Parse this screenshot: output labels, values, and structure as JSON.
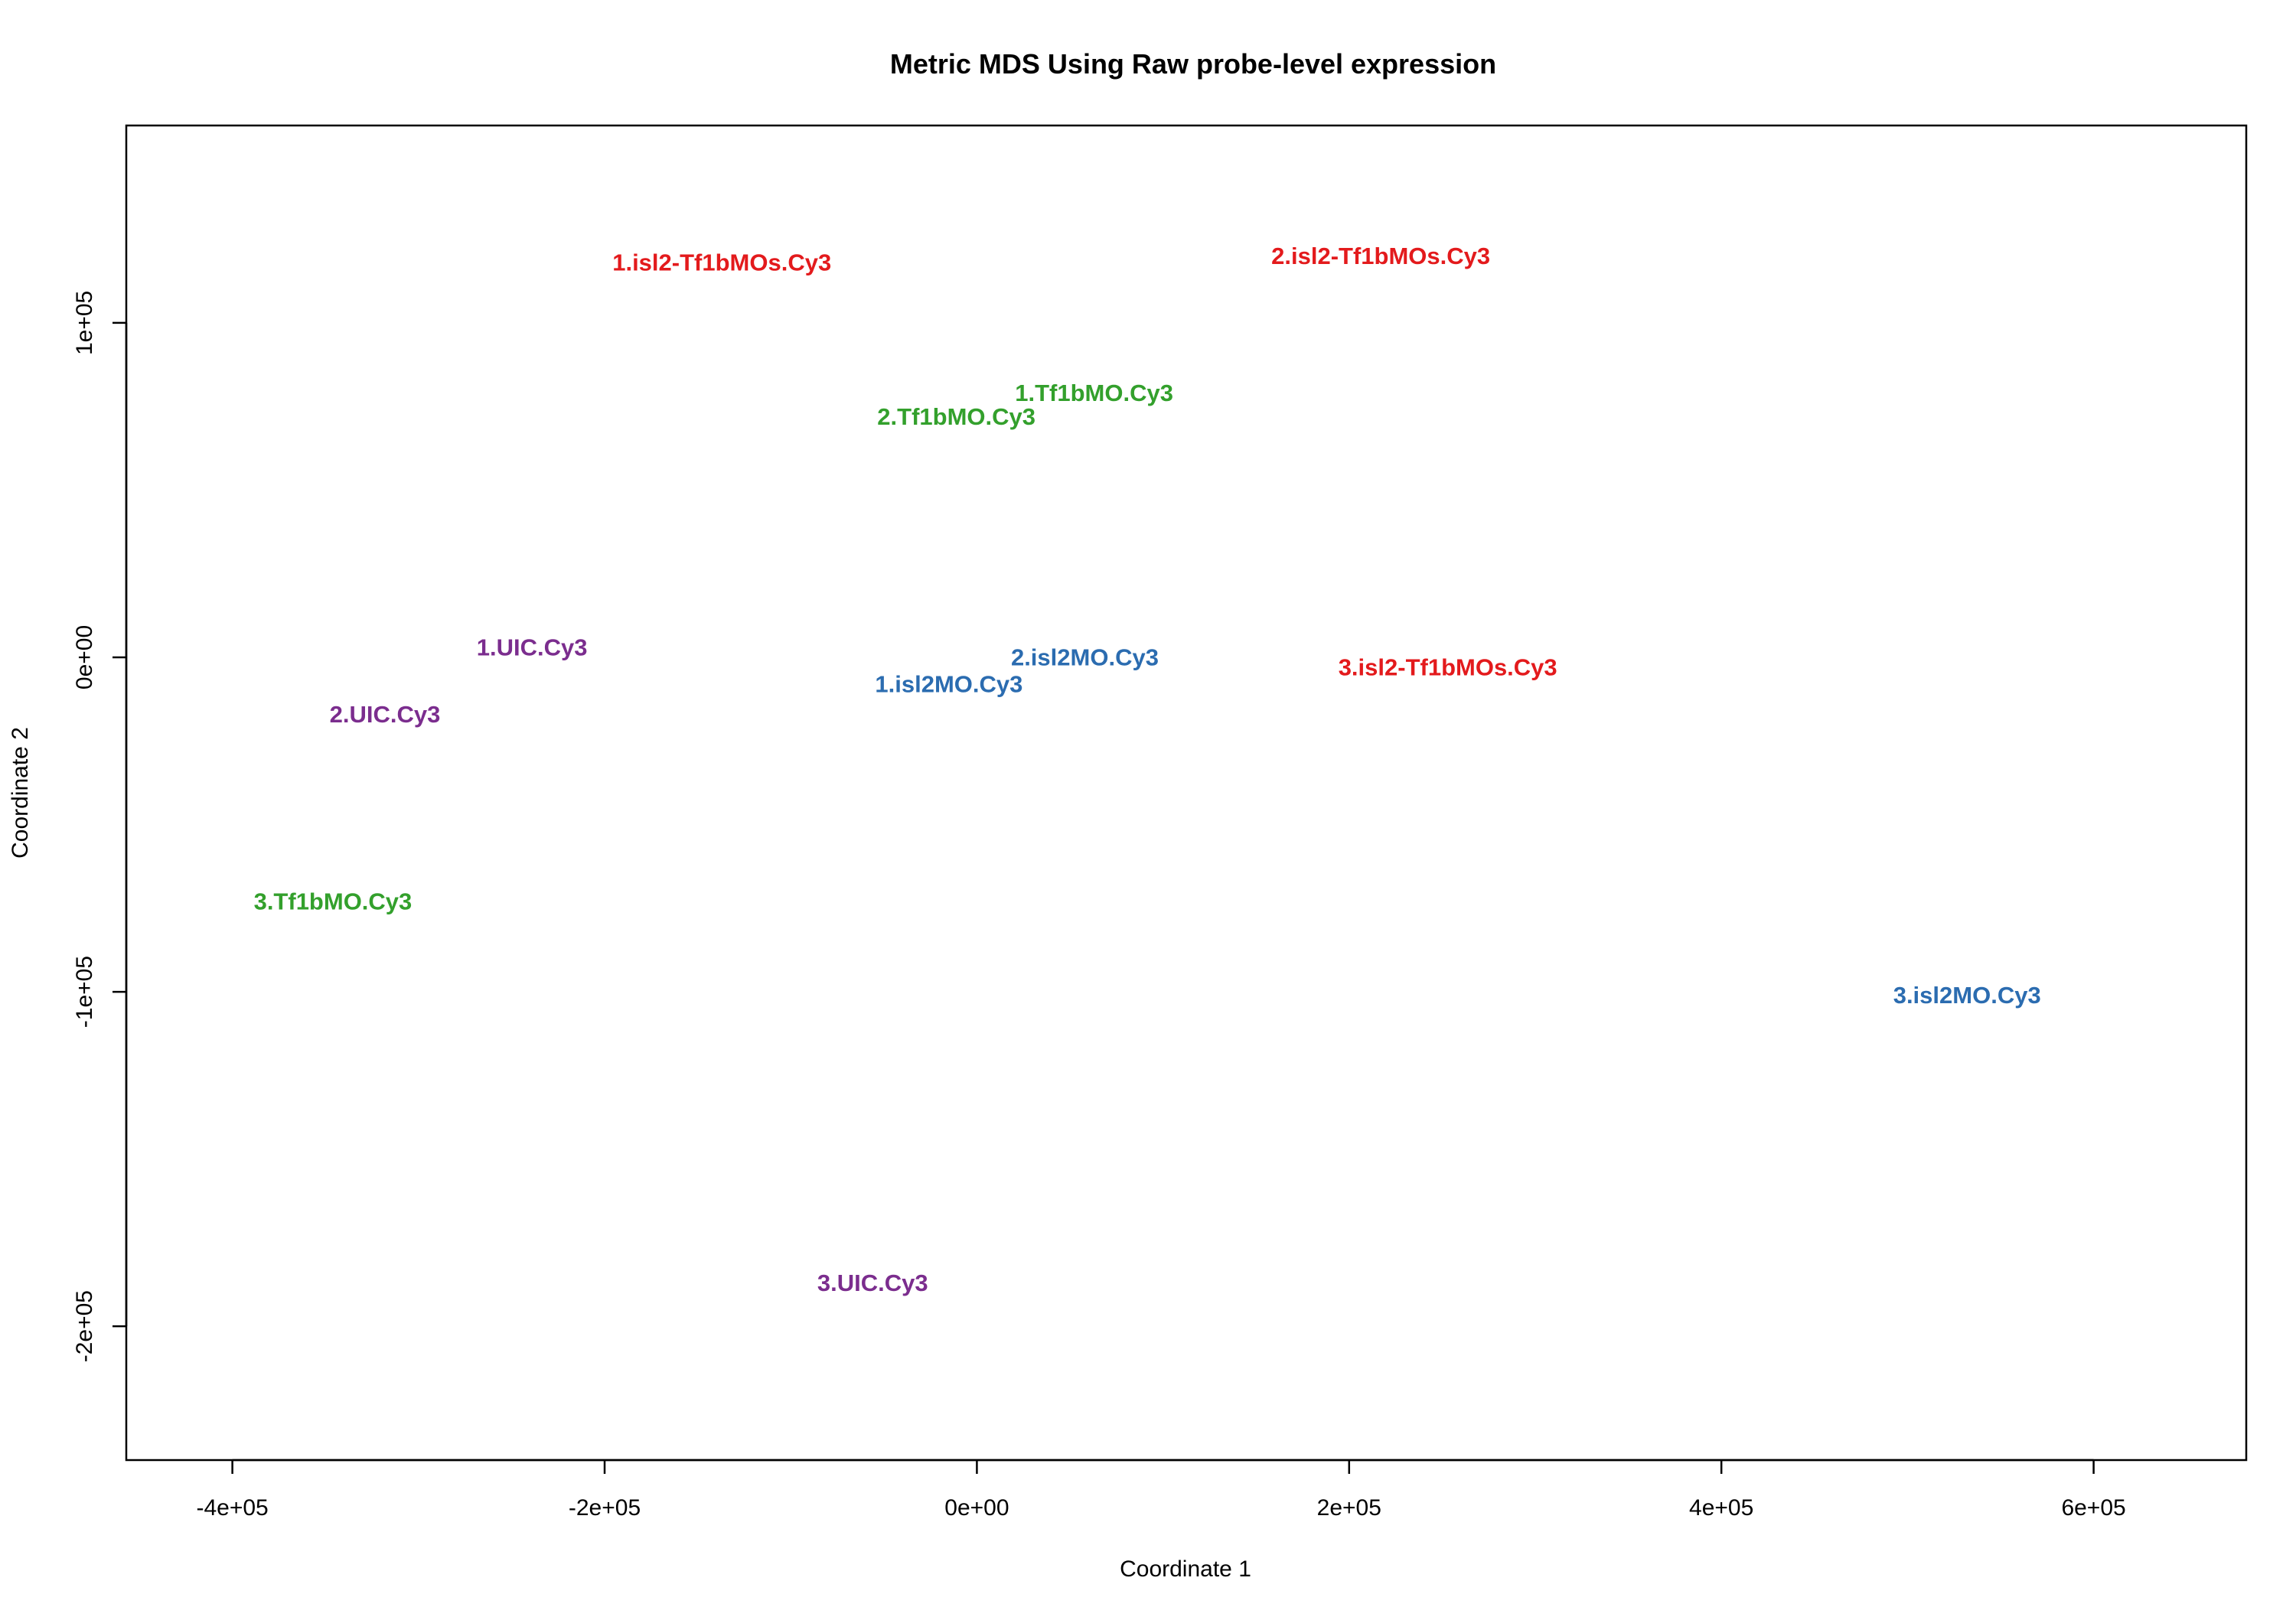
{
  "chart_data": {
    "type": "scatter",
    "title": "Metric MDS Using Raw probe-level expression",
    "xlabel": "Coordinate 1",
    "ylabel": "Coordinate 2",
    "xlim": [
      -457000,
      682000
    ],
    "ylim": [
      -240000,
      159000
    ],
    "x_ticks": [
      -400000,
      -200000,
      0,
      200000,
      400000,
      600000
    ],
    "x_tick_labels": [
      "-4e+05",
      "-2e+05",
      "0e+00",
      "2e+05",
      "4e+05",
      "6e+05"
    ],
    "y_ticks": [
      -200000,
      -100000,
      0,
      100000
    ],
    "y_tick_labels": [
      "-2e+05",
      "-1e+05",
      "0e+00",
      "1e+05"
    ],
    "grid": false,
    "series": [
      {
        "name": "isl2-Tf1bMOs",
        "color": "#E31A1C",
        "points": [
          {
            "label": "1.isl2-Tf1bMOs.Cy3",
            "x": -137000,
            "y": 118000
          },
          {
            "label": "2.isl2-Tf1bMOs.Cy3",
            "x": 217000,
            "y": 120000
          },
          {
            "label": "3.isl2-Tf1bMOs.Cy3",
            "x": 253000,
            "y": -3000
          }
        ]
      },
      {
        "name": "Tf1bMO",
        "color": "#33A02C",
        "points": [
          {
            "label": "1.Tf1bMO.Cy3",
            "x": 63000,
            "y": 79000
          },
          {
            "label": "2.Tf1bMO.Cy3",
            "x": -11000,
            "y": 72000
          },
          {
            "label": "3.Tf1bMO.Cy3",
            "x": -346000,
            "y": -73000
          }
        ]
      },
      {
        "name": "isl2MO",
        "color": "#2B6CB0",
        "points": [
          {
            "label": "1.isl2MO.Cy3",
            "x": -15000,
            "y": -8000
          },
          {
            "label": "2.isl2MO.Cy3",
            "x": 58000,
            "y": 0
          },
          {
            "label": "3.isl2MO.Cy3",
            "x": 532000,
            "y": -101000
          }
        ]
      },
      {
        "name": "UIC",
        "color": "#7B2D8E",
        "points": [
          {
            "label": "1.UIC.Cy3",
            "x": -239000,
            "y": 3000
          },
          {
            "label": "2.UIC.Cy3",
            "x": -318000,
            "y": -17000
          },
          {
            "label": "3.UIC.Cy3",
            "x": -56000,
            "y": -187000
          }
        ]
      }
    ]
  }
}
